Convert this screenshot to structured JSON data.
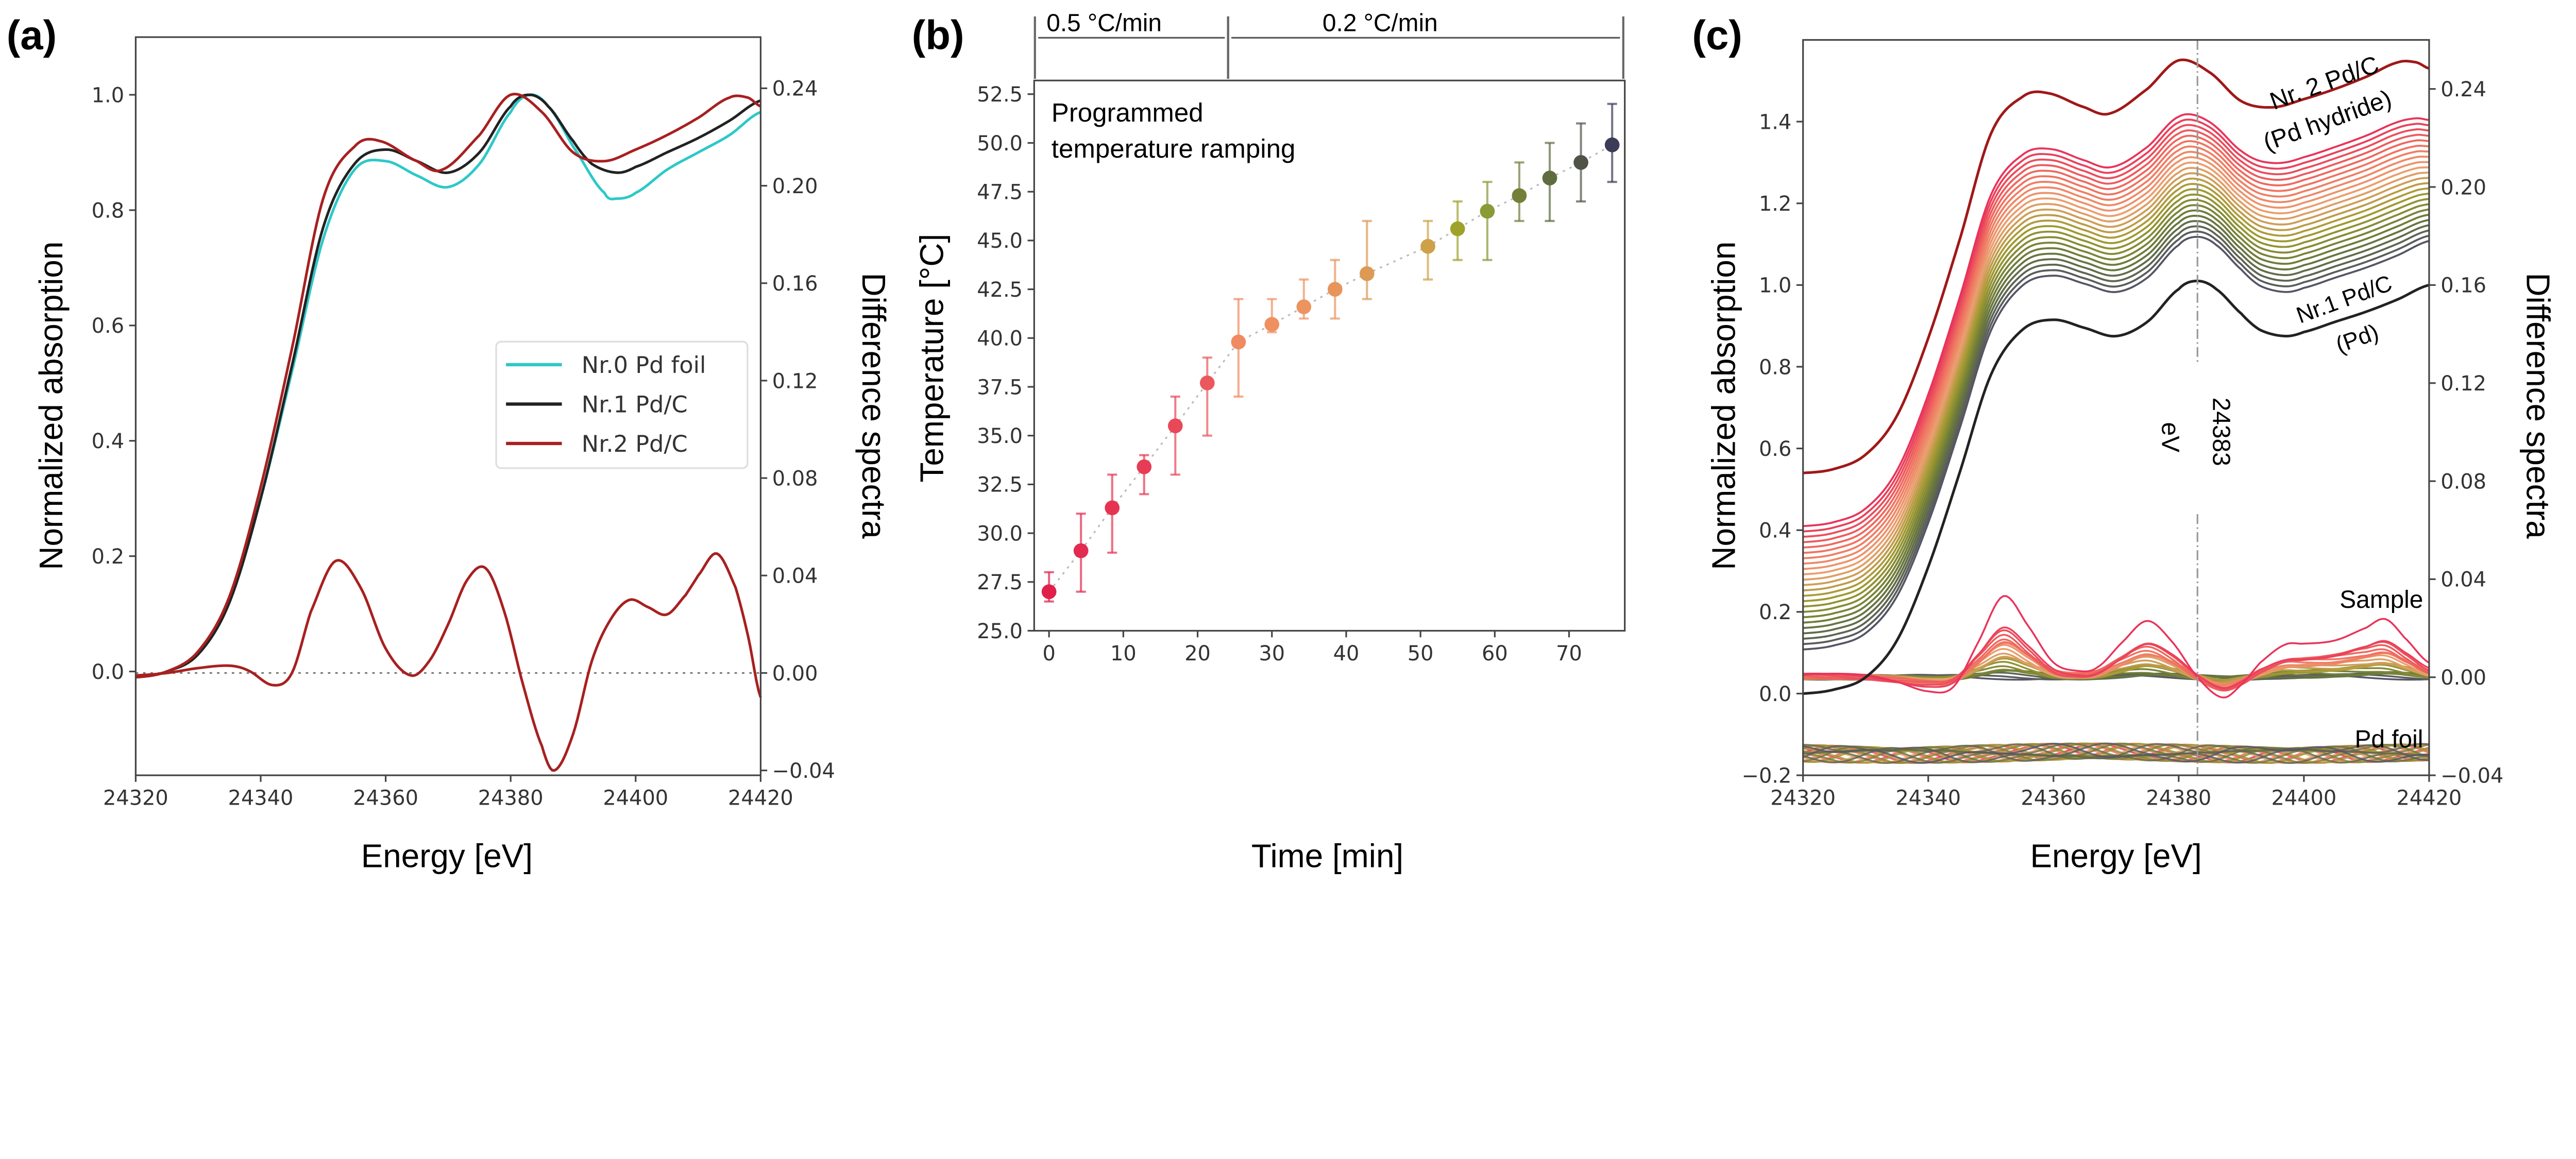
{
  "chart_data": [
    {
      "panel_label": "(a)",
      "type": "line",
      "xlabel": "Energy [eV]",
      "ylabel": "Normalized absorption",
      "ylabel_right": "Difference spectra",
      "xlim": [
        24320,
        24420
      ],
      "ylim": [
        -0.18,
        1.1
      ],
      "ylim_right": [
        -0.042,
        0.261
      ],
      "xticks": [
        24320,
        24340,
        24360,
        24380,
        24400,
        24420
      ],
      "yticks": [
        "0.0",
        "0.2",
        "0.4",
        "0.6",
        "0.8",
        "1.0"
      ],
      "yticks_right": [
        "-0.04",
        "0.00",
        "0.04",
        "0.08",
        "0.12",
        "0.16",
        "0.20",
        "0.24"
      ],
      "legend_position": "center-right",
      "zero_line": true,
      "series": [
        {
          "name": "Nr.0 Pd foil",
          "color": "#2ec8c8",
          "axis": "left",
          "x": [
            24320,
            24325,
            24330,
            24335,
            24340,
            24345,
            24350,
            24355,
            24360,
            24365,
            24370,
            24375,
            24380,
            24383,
            24386,
            24390,
            24395,
            24397,
            24400,
            24405,
            24410,
            24415,
            24420
          ],
          "y": [
            -0.01,
            0.0,
            0.03,
            0.12,
            0.3,
            0.52,
            0.75,
            0.87,
            0.885,
            0.86,
            0.84,
            0.88,
            0.97,
            1.0,
            0.98,
            0.91,
            0.83,
            0.82,
            0.83,
            0.87,
            0.9,
            0.93,
            0.97
          ]
        },
        {
          "name": "Nr.1 Pd/C",
          "color": "#222222",
          "axis": "left",
          "x": [
            24320,
            24325,
            24330,
            24335,
            24340,
            24345,
            24350,
            24355,
            24360,
            24365,
            24370,
            24375,
            24380,
            24383,
            24386,
            24390,
            24393,
            24397,
            24400,
            24405,
            24410,
            24415,
            24420
          ],
          "y": [
            -0.01,
            0.0,
            0.03,
            0.12,
            0.3,
            0.53,
            0.77,
            0.88,
            0.905,
            0.885,
            0.865,
            0.9,
            0.98,
            1.0,
            0.98,
            0.92,
            0.88,
            0.865,
            0.875,
            0.9,
            0.925,
            0.955,
            0.99
          ]
        },
        {
          "name": "Nr.2 Pd/C",
          "color": "#a82020",
          "axis": "left",
          "x": [
            24320,
            24325,
            24330,
            24335,
            24340,
            24345,
            24350,
            24355,
            24359,
            24365,
            24369,
            24375,
            24380,
            24385,
            24390,
            24395,
            24400,
            24405,
            24410,
            24415,
            24418,
            24420
          ],
          "y": [
            -0.01,
            0.0,
            0.035,
            0.13,
            0.32,
            0.56,
            0.82,
            0.91,
            0.92,
            0.885,
            0.87,
            0.93,
            1.0,
            0.97,
            0.9,
            0.885,
            0.905,
            0.93,
            0.96,
            0.995,
            0.995,
            0.98
          ]
        },
        {
          "color": "#a82020",
          "axis": "right",
          "x": [
            24320,
            24325,
            24330,
            24335,
            24338,
            24342,
            24345,
            24348,
            24352,
            24356,
            24360,
            24364,
            24367,
            24370,
            24373,
            24376,
            24379,
            24382,
            24385,
            24387,
            24390,
            24393,
            24396,
            24399,
            24402,
            24405,
            24408,
            24410,
            24413,
            24416,
            24418,
            24420
          ],
          "y": [
            -0.001,
            0,
            0.002,
            0.003,
            0.001,
            -0.005,
            0,
            0.025,
            0.046,
            0.035,
            0.01,
            -0.001,
            0.005,
            0.02,
            0.038,
            0.043,
            0.025,
            -0.005,
            -0.03,
            -0.04,
            -0.025,
            0.005,
            0.022,
            0.03,
            0.027,
            0.024,
            0.032,
            0.04,
            0.049,
            0.035,
            0.015,
            -0.01
          ]
        }
      ]
    },
    {
      "panel_label": "(b)",
      "type": "scatter",
      "xlabel": "Time [min]",
      "ylabel": "Temperature [°C]",
      "xlim": [
        -2,
        77.5
      ],
      "ylim": [
        25,
        53.2
      ],
      "xticks": [
        "0",
        "10",
        "20",
        "30",
        "40",
        "50",
        "60",
        "70"
      ],
      "yticks": [
        "25.0",
        "27.5",
        "30.0",
        "32.5",
        "35.0",
        "37.5",
        "40.0",
        "42.5",
        "45.0",
        "47.5",
        "50.0",
        "52.5"
      ],
      "annotation": [
        "Programmed",
        "temperature ramping"
      ],
      "ramp_segments": [
        {
          "label": "0.5 °C/min",
          "from": -1.9,
          "to": 24.1
        },
        {
          "label": "0.2 °C/min",
          "from": 24.1,
          "to": 77.3
        }
      ],
      "points": [
        {
          "x": 0,
          "y": 27.0,
          "lo": 26.5,
          "hi": 28,
          "color": "#e0204a"
        },
        {
          "x": 4.3,
          "y": 29.1,
          "lo": 27,
          "hi": 31,
          "color": "#e32a50"
        },
        {
          "x": 8.5,
          "y": 31.3,
          "lo": 29,
          "hi": 33,
          "color": "#e53452"
        },
        {
          "x": 12.8,
          "y": 33.4,
          "lo": 32,
          "hi": 34,
          "color": "#e63c55"
        },
        {
          "x": 17.0,
          "y": 35.5,
          "lo": 33,
          "hi": 37,
          "color": "#e84858"
        },
        {
          "x": 21.3,
          "y": 37.7,
          "lo": 35,
          "hi": 39,
          "color": "#eb585c"
        },
        {
          "x": 25.5,
          "y": 39.8,
          "lo": 37,
          "hi": 42,
          "color": "#f08a60"
        },
        {
          "x": 30.0,
          "y": 40.7,
          "lo": 40.3,
          "hi": 42,
          "color": "#f09060"
        },
        {
          "x": 34.3,
          "y": 41.6,
          "lo": 41,
          "hi": 43,
          "color": "#ec9460"
        },
        {
          "x": 38.5,
          "y": 42.5,
          "lo": 41,
          "hi": 44,
          "color": "#e8955c"
        },
        {
          "x": 42.8,
          "y": 43.3,
          "lo": 42,
          "hi": 46,
          "color": "#dc9a55"
        },
        {
          "x": 51.0,
          "y": 44.7,
          "lo": 43,
          "hi": 46,
          "color": "#cfa048"
        },
        {
          "x": 55.0,
          "y": 45.6,
          "lo": 44,
          "hi": 47,
          "color": "#9ea22a"
        },
        {
          "x": 59.0,
          "y": 46.5,
          "lo": 44,
          "hi": 48,
          "color": "#8a9a36"
        },
        {
          "x": 63.3,
          "y": 47.3,
          "lo": 46,
          "hi": 49,
          "color": "#72803a"
        },
        {
          "x": 67.4,
          "y": 48.2,
          "lo": 46,
          "hi": 50,
          "color": "#5f6c40"
        },
        {
          "x": 71.6,
          "y": 49.0,
          "lo": 47,
          "hi": 51,
          "color": "#505448"
        },
        {
          "x": 75.8,
          "y": 49.9,
          "lo": 48,
          "hi": 52,
          "color": "#3c3c58"
        }
      ]
    },
    {
      "panel_label": "(c)",
      "type": "line",
      "xlabel": "Energy [eV]",
      "ylabel": "Normalized absorption",
      "ylabel_right": "Difference spectra",
      "xlim": [
        24320,
        24420
      ],
      "ylim": [
        -0.2,
        1.6
      ],
      "ylim_right": [
        -0.04,
        0.26
      ],
      "xticks": [
        24320,
        24340,
        24360,
        24380,
        24400,
        24420
      ],
      "yticks": [
        "-0.2",
        "0.0",
        "0.2",
        "0.4",
        "0.6",
        "0.8",
        "1.0",
        "1.2",
        "1.4"
      ],
      "yticks_right": [
        "-0.04",
        "0.00",
        "0.04",
        "0.08",
        "0.12",
        "0.16",
        "0.20",
        "0.24"
      ],
      "marker_line": {
        "x": 24383,
        "label": [
          "24383",
          "eV"
        ]
      },
      "labels": {
        "top": [
          "Nr. 2 Pd/C",
          "(Pd hydride)"
        ],
        "bottom": [
          "Nr.1 Pd/C",
          "(Pd)"
        ],
        "sample": "Sample",
        "foil": "Pd foil"
      },
      "top_curve": {
        "color": "#a01818",
        "offset": 0.55
      },
      "bottom_curve": {
        "color": "#222222",
        "offset": 0.01
      },
      "stack_offsets": [
        0.44,
        0.426,
        0.412,
        0.398,
        0.384,
        0.37,
        0.356,
        0.342,
        0.328,
        0.314,
        0.3,
        0.286,
        0.272,
        0.258,
        0.244,
        0.23,
        0.216,
        0.202,
        0.188,
        0.174,
        0.16,
        0.146,
        0.132,
        0.118
      ],
      "stack_colors": [
        "#e8345a",
        "#f07060",
        "#eba070",
        "#a09a30",
        "#6a7a3a",
        "#555566"
      ],
      "sample_diff_reference": {
        "x": [
          24320,
          24330,
          24335,
          24340,
          24344,
          24348,
          24352,
          24356,
          24360,
          24364,
          24367,
          24371,
          24375,
          24379,
          24383,
          24387,
          24390,
          24393,
          24397,
          24400,
          24405,
          24410,
          24413,
          24416,
          24420
        ],
        "y": [
          0.001,
          0,
          -0.002,
          -0.005,
          -0.003,
          0.015,
          0.033,
          0.02,
          0.005,
          0.002,
          0.004,
          0.015,
          0.024,
          0.015,
          0.0,
          -0.009,
          -0.004,
          0.005,
          0.013,
          0.014,
          0.016,
          0.021,
          0.024,
          0.016,
          0.005
        ]
      },
      "foil_diff_level": -0.031
    }
  ]
}
